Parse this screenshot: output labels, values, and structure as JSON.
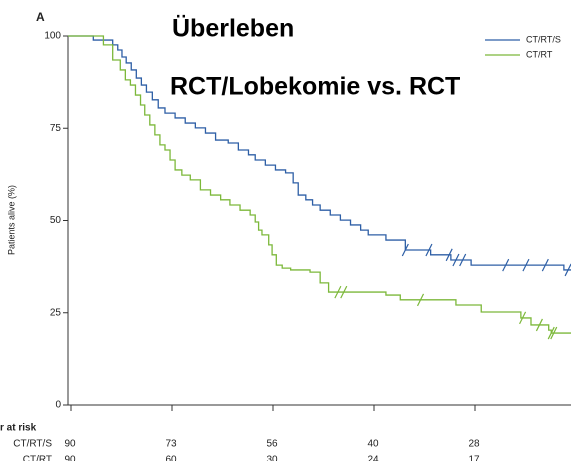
{
  "chart_data": {
    "type": "step",
    "panel_label": "A",
    "title": "Überleben",
    "subtitle": "RCT/Lobekomie vs. RCT",
    "y_label": "Patients alive (%)",
    "xlim": [
      0,
      60
    ],
    "ylim": [
      0,
      100
    ],
    "yticks": [
      0,
      25,
      50,
      75,
      100
    ],
    "legend": "top-right",
    "series": [
      {
        "name": "CT/RT/S",
        "color": "#2e5fa6",
        "x": [
          0,
          3.0,
          5.3,
          5.9,
          6.4,
          6.9,
          7.5,
          8.1,
          8.7,
          9.3,
          10.0,
          10.7,
          11.5,
          12.7,
          13.9,
          15.1,
          16.3,
          17.5,
          19.0,
          20.2,
          21.4,
          22.2,
          23.4,
          24.6,
          25.8,
          26.7,
          27.3,
          28.2,
          29.0,
          29.9,
          31.1,
          32.3,
          33.5,
          34.7,
          35.6,
          37.7,
          40.0,
          43.0,
          45.4,
          47.8,
          58.8,
          59.8
        ],
        "values": [
          100,
          98.9,
          97.6,
          96.2,
          94.3,
          92.7,
          90.8,
          88.6,
          86.7,
          84.8,
          82.7,
          80.5,
          79.1,
          77.8,
          76.4,
          75.1,
          73.7,
          71.8,
          71.0,
          69.1,
          67.8,
          66.4,
          65.0,
          63.7,
          62.9,
          60.2,
          56.9,
          55.6,
          54.2,
          52.8,
          51.5,
          50.1,
          48.8,
          47.4,
          46.1,
          44.7,
          42.0,
          40.7,
          39.3,
          37.9,
          36.6,
          35.2
        ],
        "censored": [
          40.0,
          42.8,
          45.2,
          46.0,
          46.8,
          51.9,
          54.3,
          56.6,
          59.3
        ]
      },
      {
        "name": "CT/RT",
        "color": "#7cb83a",
        "x": [
          0,
          4.2,
          5.3,
          6.2,
          6.8,
          7.4,
          8.0,
          8.6,
          9.1,
          9.7,
          10.3,
          10.9,
          11.5,
          12.1,
          12.7,
          13.5,
          14.5,
          15.7,
          16.9,
          18.1,
          19.2,
          20.4,
          21.6,
          22.2,
          22.6,
          23.0,
          23.8,
          24.2,
          24.7,
          25.4,
          26.4,
          28.7,
          29.9,
          30.9,
          37.7,
          39.4,
          46.0,
          49.0,
          53.7,
          54.9,
          57.0,
          57.3,
          59.8
        ],
        "values": [
          100,
          97.6,
          93.5,
          90.8,
          88.1,
          86.7,
          84.0,
          81.3,
          78.6,
          75.9,
          73.2,
          70.5,
          69.1,
          66.4,
          63.7,
          62.3,
          61.0,
          58.3,
          56.9,
          55.6,
          54.2,
          52.8,
          51.5,
          49.6,
          47.4,
          46.1,
          43.4,
          40.7,
          37.9,
          37.1,
          36.6,
          36.0,
          33.1,
          30.6,
          29.8,
          28.5,
          27.1,
          25.2,
          23.6,
          21.7,
          20.3,
          19.5,
          19.5
        ],
        "censored": [
          32.0,
          32.7,
          41.8,
          53.9,
          55.9,
          57.3,
          57.6
        ]
      }
    ],
    "risk_table": {
      "title": "r at risk",
      "rows": [
        {
          "label": "CT/RT/S",
          "values": [
            90,
            73,
            56,
            40,
            28
          ]
        },
        {
          "label": "CT/RT",
          "values": [
            90,
            60,
            30,
            24,
            17
          ]
        }
      ]
    }
  }
}
